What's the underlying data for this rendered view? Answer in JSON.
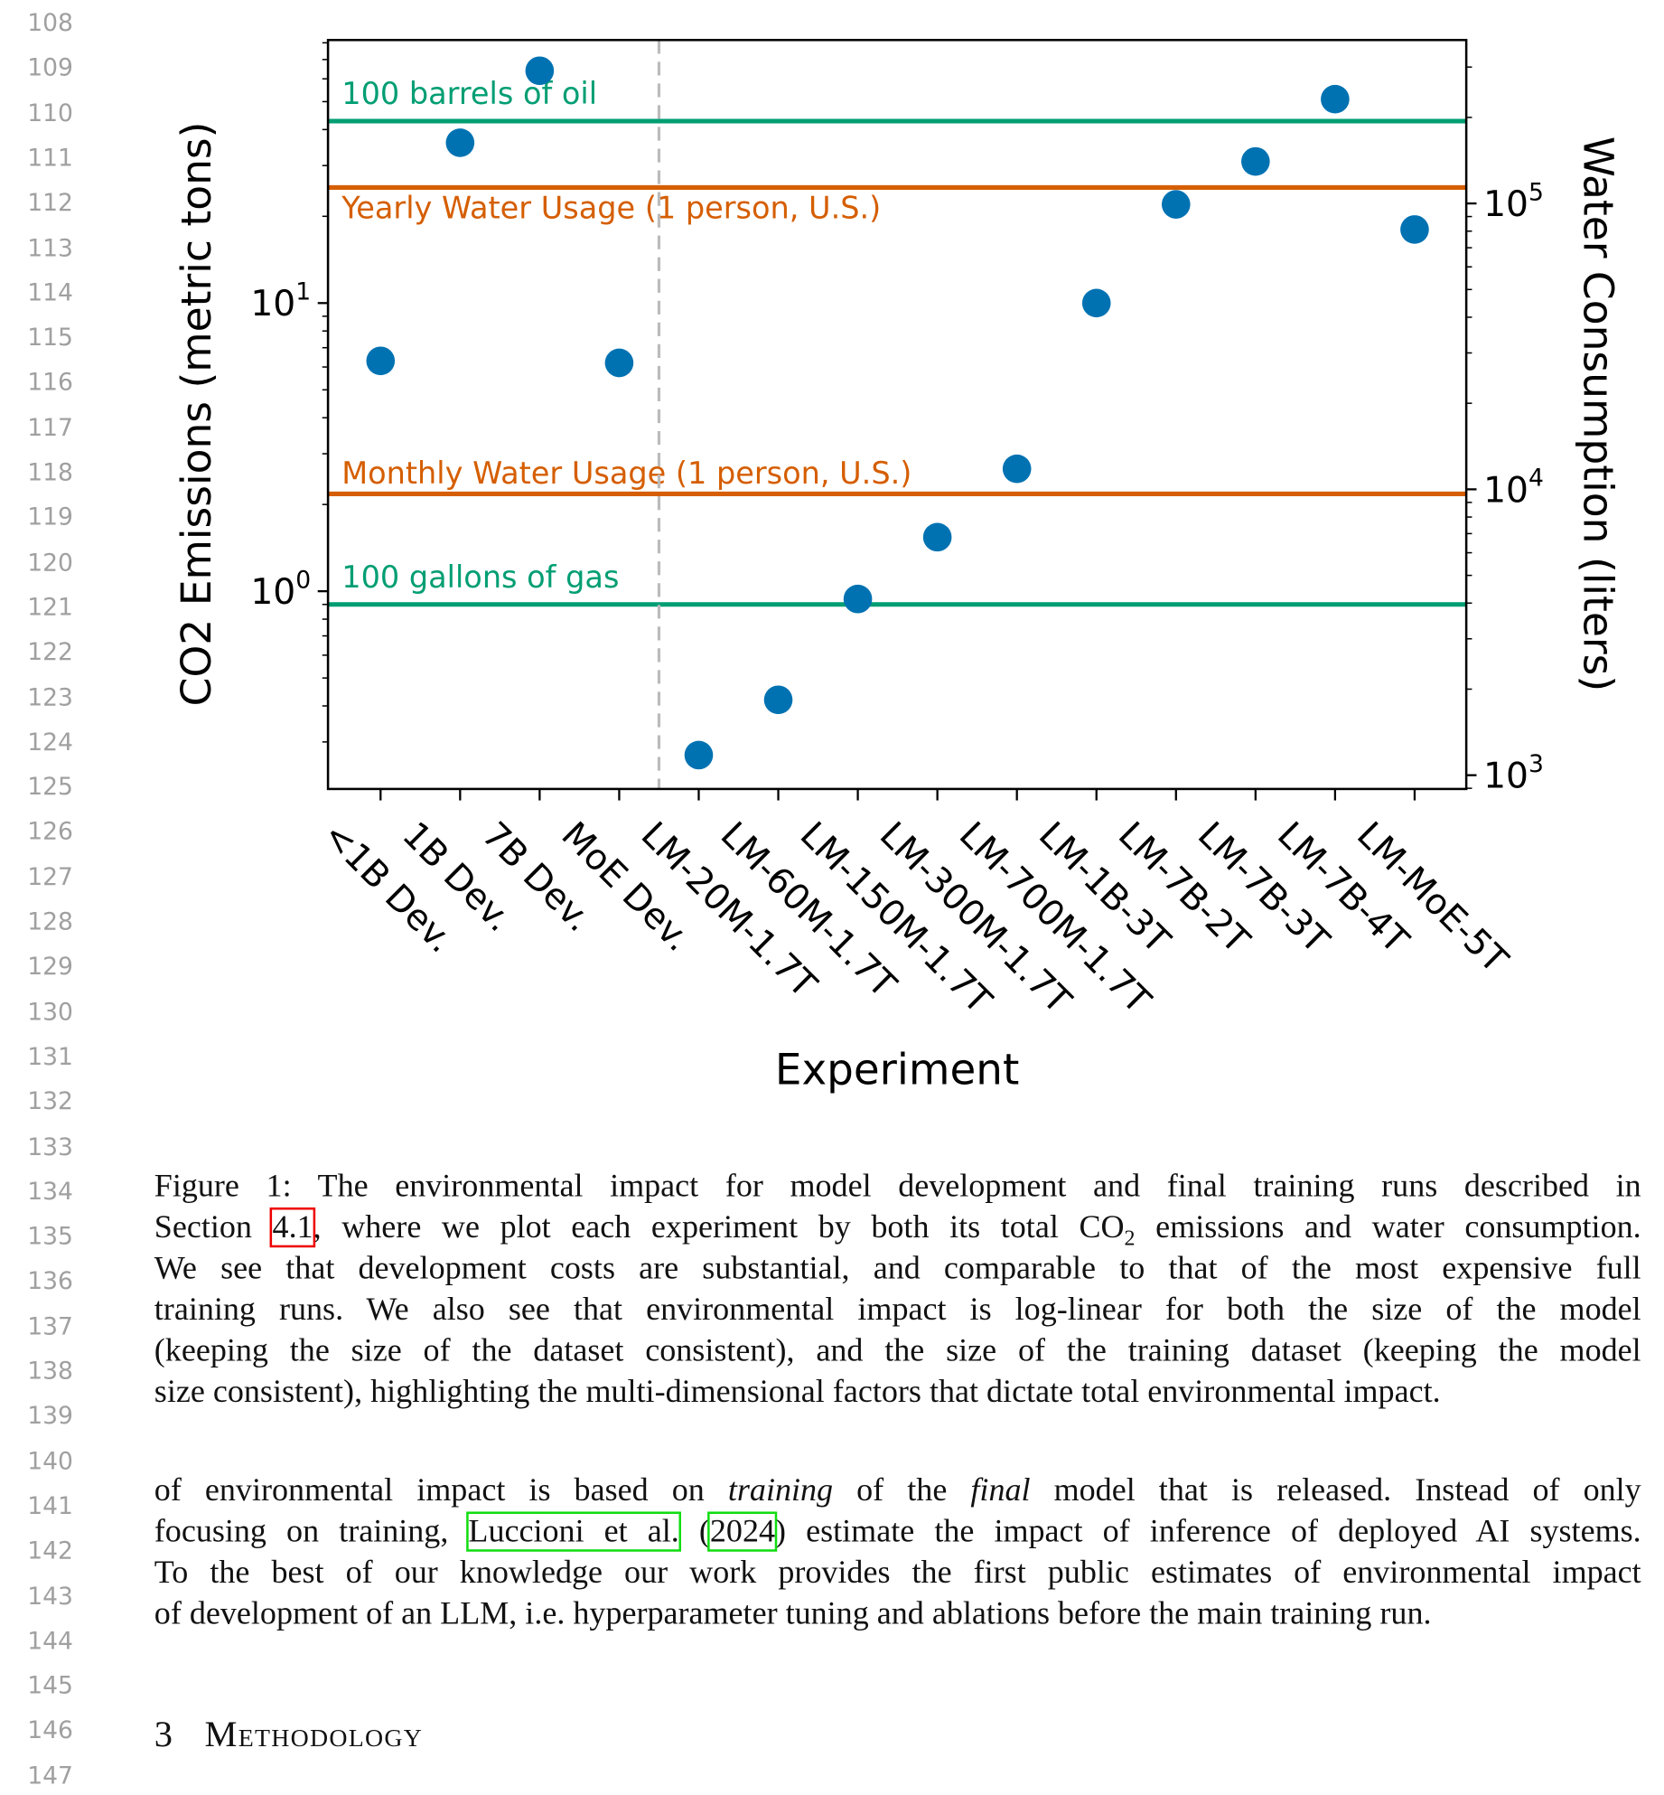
{
  "line_numbers": [
    "108",
    "109",
    "110",
    "111",
    "112",
    "113",
    "114",
    "115",
    "116",
    "117",
    "118",
    "119",
    "120",
    "121",
    "122",
    "123",
    "124",
    "125",
    "126",
    "127",
    "128",
    "129",
    "130",
    "131",
    "132",
    "133",
    "134",
    "135",
    "136",
    "137",
    "138",
    "139",
    "140",
    "141",
    "142",
    "143",
    "144",
    "145",
    "146",
    "147"
  ],
  "chart_data": {
    "type": "scatter",
    "xlabel": "Experiment",
    "ylabel": "CO2 Emissions (metric tons)",
    "ylabel_right": "Water Consumption (liters)",
    "yscale": "log",
    "ylim": [
      0.206,
      81.8
    ],
    "ylim_right": [
      895,
      373000
    ],
    "yticks": [
      {
        "value": 1,
        "label_base": "10",
        "label_exp": "0"
      },
      {
        "value": 10,
        "label_base": "10",
        "label_exp": "1"
      }
    ],
    "yticks_right": [
      {
        "value": 1000,
        "label_base": "10",
        "label_exp": "3"
      },
      {
        "value": 10000,
        "label_base": "10",
        "label_exp": "4"
      },
      {
        "value": 100000,
        "label_base": "10",
        "label_exp": "5"
      }
    ],
    "categories": [
      "<1B Dev.",
      "1B Dev.",
      "7B Dev.",
      "MoE Dev.",
      "LM-20M-1.7T",
      "LM-60M-1.7T",
      "LM-150M-1.7T",
      "LM-300M-1.7T",
      "LM-700M-1.7T",
      "LM-1B-3T",
      "LM-7B-2T",
      "LM-7B-3T",
      "LM-7B-4T",
      "LM-MoE-5T"
    ],
    "values": [
      6.3,
      36,
      64,
      6.2,
      0.27,
      0.42,
      0.94,
      1.54,
      2.66,
      10,
      22,
      31,
      51,
      18
    ],
    "point_color": "#0072b2",
    "divider_after_index": 3,
    "reference_lines": [
      {
        "label": "100 barrels of oil",
        "axis": "left",
        "value": 42.8,
        "color": "#009e73"
      },
      {
        "label": "Yearly Water Usage (1 person, U.S.)",
        "axis": "right",
        "value": 113700,
        "color": "#d55e00"
      },
      {
        "label": "Monthly Water Usage (1 person, U.S.)",
        "axis": "right",
        "value": 9640,
        "color": "#d55e00"
      },
      {
        "label": "100 gallons of gas",
        "axis": "left",
        "value": 0.9,
        "color": "#009e73"
      }
    ]
  },
  "caption": {
    "l1": "Figure 1: The environmental impact for model development and final training runs described in",
    "l2_a": "Section ",
    "l2_ref": "4.1",
    "l2_b": ", where we plot each experiment by both its total CO",
    "l2_sub": "2",
    "l2_c": " emissions and water consumption.",
    "l3": "We see that development costs are substantial, and comparable to that of the most expensive full",
    "l4": "training runs.  We also see that environmental impact is log-linear for both the size of the model",
    "l5": "(keeping the size of the dataset consistent), and the size of the training dataset (keeping the model",
    "l6": "size consistent), highlighting the multi-dimensional factors that dictate total environmental impact."
  },
  "paragraph": {
    "l1_a": "of environmental impact is based on ",
    "l1_em1": "training",
    "l1_b": " of the ",
    "l1_em2": "final",
    "l1_c": " model that is released.  Instead of only",
    "l2_a": "focusing on training, ",
    "l2_cite_author": "Luccioni et al.",
    "l2_paren_open": " (",
    "l2_cite_year": "2024",
    "l2_b": ") estimate the impact of inference of deployed AI systems.",
    "l3": "To the best of our knowledge our work provides the first public estimates of environmental impact",
    "l4": "of development of an LLM, i.e. hyperparameter tuning and ablations before the main training run."
  },
  "section": {
    "number": "3",
    "title": "Methodology"
  }
}
